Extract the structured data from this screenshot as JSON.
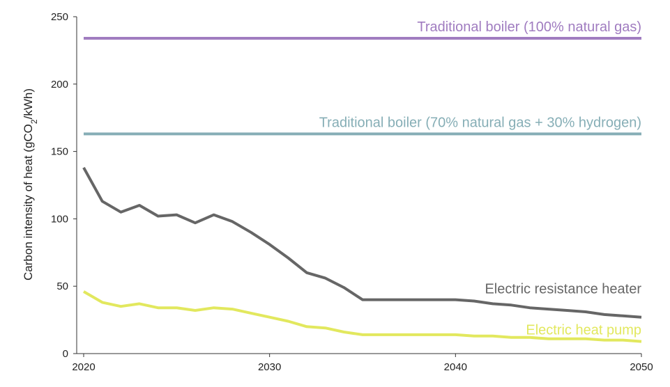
{
  "chart_data": {
    "type": "line",
    "title": "",
    "xlabel": "",
    "ylabel": {
      "prefix": "Carbon intensity of heat (gCO",
      "subscript": "2",
      "suffix": "/kWh)"
    },
    "xlim": [
      2020,
      2050
    ],
    "ylim": [
      0,
      250
    ],
    "xticks": [
      2020,
      2030,
      2040,
      2050
    ],
    "yticks": [
      0,
      50,
      100,
      150,
      200,
      250
    ],
    "grid": false,
    "legend": "inline labels",
    "series": [
      {
        "name": "Traditional boiler (100% natural gas)",
        "color": "#a07cc0",
        "x": [
          2020,
          2050
        ],
        "y": [
          234,
          234
        ]
      },
      {
        "name": "Traditional boiler (70% natural gas + 30% hydrogen)",
        "color": "#86aeb6",
        "x": [
          2020,
          2050
        ],
        "y": [
          163,
          163
        ]
      },
      {
        "name": "Electric resistance heater",
        "color": "#666666",
        "x": [
          2020,
          2021,
          2022,
          2023,
          2024,
          2025,
          2026,
          2027,
          2028,
          2029,
          2030,
          2031,
          2032,
          2033,
          2034,
          2035,
          2036,
          2037,
          2038,
          2039,
          2040,
          2041,
          2042,
          2043,
          2044,
          2045,
          2046,
          2047,
          2048,
          2049,
          2050
        ],
        "y": [
          138,
          113,
          105,
          110,
          102,
          103,
          97,
          103,
          98,
          90,
          81,
          71,
          60,
          56,
          49,
          40,
          40,
          40,
          40,
          40,
          40,
          39,
          37,
          36,
          34,
          33,
          32,
          31,
          29,
          28,
          27
        ]
      },
      {
        "name": "Electric heat pump",
        "color": "#e2e85e",
        "x": [
          2020,
          2021,
          2022,
          2023,
          2024,
          2025,
          2026,
          2027,
          2028,
          2029,
          2030,
          2031,
          2032,
          2033,
          2034,
          2035,
          2036,
          2037,
          2038,
          2039,
          2040,
          2041,
          2042,
          2043,
          2044,
          2045,
          2046,
          2047,
          2048,
          2049,
          2050
        ],
        "y": [
          46,
          38,
          35,
          37,
          34,
          34,
          32,
          34,
          33,
          30,
          27,
          24,
          20,
          19,
          16,
          14,
          14,
          14,
          14,
          14,
          14,
          13,
          13,
          12,
          12,
          11,
          11,
          11,
          10,
          10,
          9
        ]
      }
    ]
  }
}
